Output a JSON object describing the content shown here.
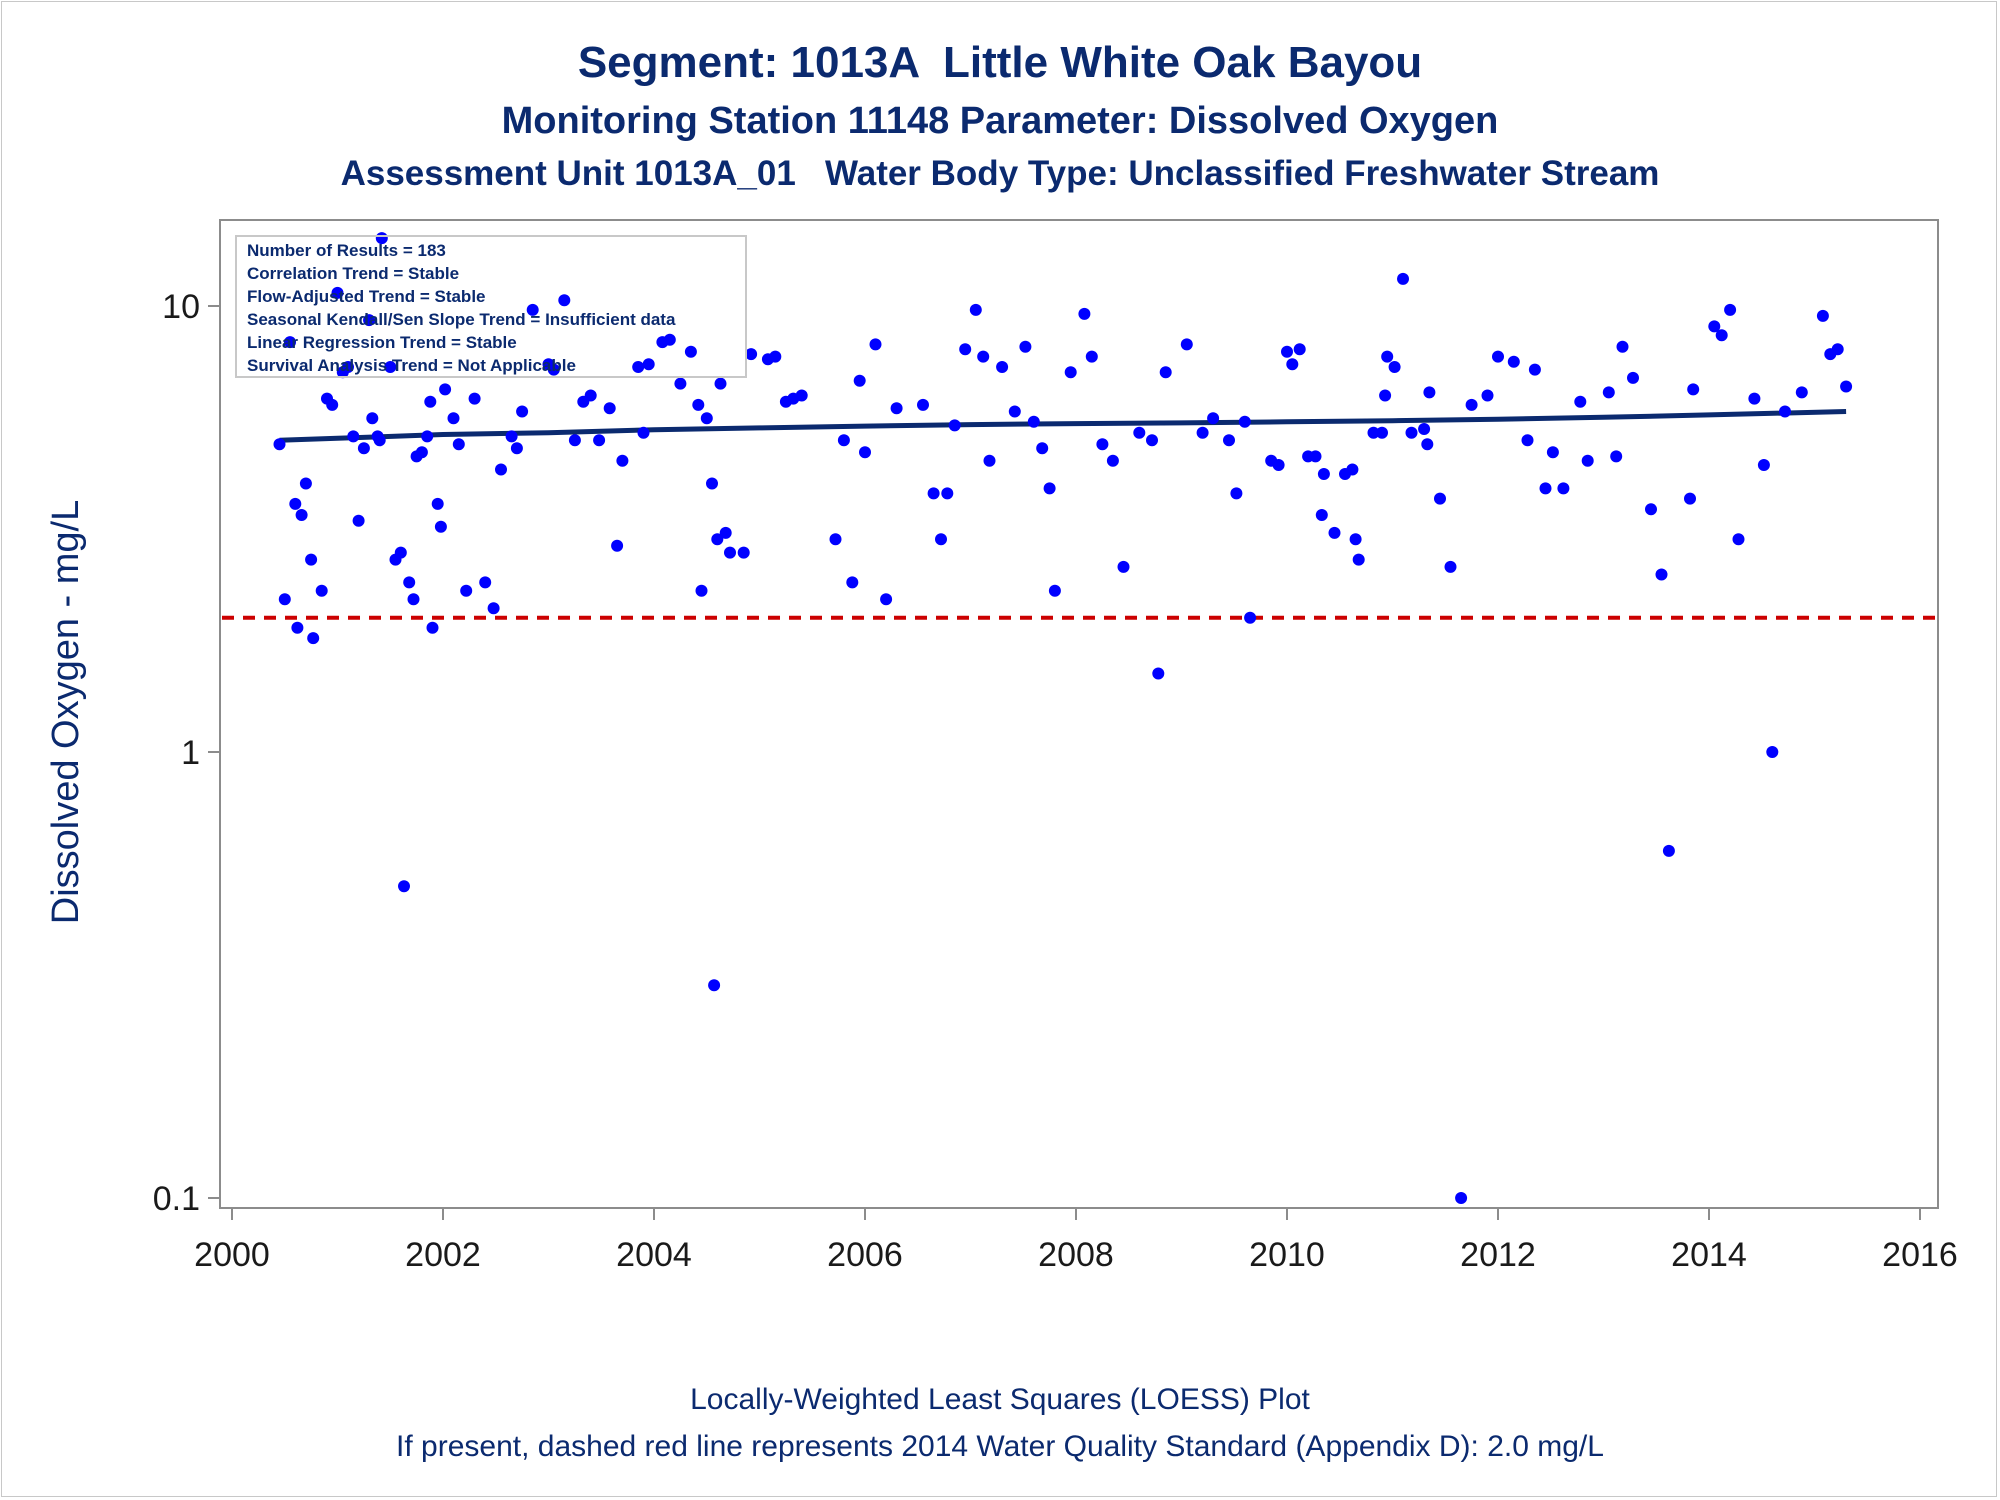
{
  "title_lines": {
    "line1": "Segment: 1013A  Little White Oak Bayou",
    "line2": "Monitoring Station 11148 Parameter: Dissolved Oxygen",
    "line3": "Assessment Unit 1013A_01   Water Body Type: Unclassified Freshwater Stream"
  },
  "footnotes": {
    "line1": "Locally-Weighted Least Squares (LOESS) Plot",
    "line2": "If present, dashed red line represents 2014 Water Quality Standard (Appendix D): 2.0 mg/L"
  },
  "stats_box": [
    "Number of Results = 183",
    "Correlation Trend = Stable",
    "Flow-Adjusted Trend = Stable",
    "Seasonal Kendall/Sen Slope Trend = Insufficient data",
    "Linear Regression Trend = Stable",
    "Survival Analysis Trend = Not Applicable"
  ],
  "colors": {
    "text": "#0b2a6f",
    "points": "#0000ff",
    "loess_line": "#0b2a6f",
    "standard_line": "#cc0000",
    "axis": "#8c8c8c"
  },
  "chart_data": {
    "type": "scatter",
    "ylabel": "Dissolved Oxygen - mg/L",
    "xlabel": "",
    "x_ticks": [
      "2000",
      "2002",
      "2004",
      "2006",
      "2008",
      "2010",
      "2012",
      "2014",
      "2016"
    ],
    "y_ticks": [
      "0.1",
      "1",
      "10"
    ],
    "xlim": [
      2000,
      2016
    ],
    "ylim": [
      0.1,
      14
    ],
    "y_scale": "log",
    "grid": false,
    "legend": "none",
    "standard_line": {
      "value": 2.0,
      "style": "dashed",
      "color": "#cc0000"
    },
    "loess_line": [
      [
        2000.45,
        5.0
      ],
      [
        2001.0,
        5.05
      ],
      [
        2002.0,
        5.15
      ],
      [
        2003.0,
        5.2
      ],
      [
        2004.0,
        5.28
      ],
      [
        2005.0,
        5.33
      ],
      [
        2006.0,
        5.38
      ],
      [
        2007.0,
        5.42
      ],
      [
        2008.0,
        5.45
      ],
      [
        2009.0,
        5.47
      ],
      [
        2010.0,
        5.5
      ],
      [
        2011.0,
        5.53
      ],
      [
        2012.0,
        5.57
      ],
      [
        2013.0,
        5.63
      ],
      [
        2014.0,
        5.7
      ],
      [
        2015.3,
        5.8
      ]
    ],
    "points": [
      [
        2000.45,
        4.9
      ],
      [
        2000.5,
        2.2
      ],
      [
        2000.55,
        8.3
      ],
      [
        2000.6,
        3.6
      ],
      [
        2000.62,
        1.9
      ],
      [
        2000.66,
        3.4
      ],
      [
        2000.7,
        4.0
      ],
      [
        2000.75,
        2.7
      ],
      [
        2000.77,
        1.8
      ],
      [
        2000.85,
        2.3
      ],
      [
        2000.9,
        6.2
      ],
      [
        2000.95,
        6.0
      ],
      [
        2001.0,
        10.7
      ],
      [
        2001.05,
        7.1
      ],
      [
        2001.1,
        7.3
      ],
      [
        2001.15,
        5.1
      ],
      [
        2001.2,
        3.3
      ],
      [
        2001.25,
        4.8
      ],
      [
        2001.3,
        9.3
      ],
      [
        2001.33,
        5.6
      ],
      [
        2001.38,
        5.1
      ],
      [
        2001.4,
        5.0
      ],
      [
        2001.42,
        14.2
      ],
      [
        2001.5,
        7.3
      ],
      [
        2001.55,
        2.7
      ],
      [
        2001.6,
        2.8
      ],
      [
        2001.63,
        0.5
      ],
      [
        2001.68,
        2.4
      ],
      [
        2001.72,
        2.2
      ],
      [
        2001.75,
        4.6
      ],
      [
        2001.8,
        4.7
      ],
      [
        2001.85,
        5.1
      ],
      [
        2001.88,
        6.1
      ],
      [
        2001.9,
        1.9
      ],
      [
        2001.95,
        3.6
      ],
      [
        2001.98,
        3.2
      ],
      [
        2002.02,
        6.5
      ],
      [
        2002.1,
        5.6
      ],
      [
        2002.15,
        4.9
      ],
      [
        2002.22,
        2.3
      ],
      [
        2002.3,
        6.2
      ],
      [
        2002.4,
        2.4
      ],
      [
        2002.48,
        2.1
      ],
      [
        2002.55,
        4.3
      ],
      [
        2002.65,
        5.1
      ],
      [
        2002.7,
        4.8
      ],
      [
        2002.75,
        5.8
      ],
      [
        2002.85,
        9.8
      ],
      [
        2003.0,
        7.4
      ],
      [
        2003.05,
        7.2
      ],
      [
        2003.15,
        10.3
      ],
      [
        2003.25,
        5.0
      ],
      [
        2003.33,
        6.1
      ],
      [
        2003.4,
        6.3
      ],
      [
        2003.48,
        5.0
      ],
      [
        2003.58,
        5.9
      ],
      [
        2003.65,
        2.9
      ],
      [
        2003.7,
        4.5
      ],
      [
        2003.85,
        7.3
      ],
      [
        2003.9,
        5.2
      ],
      [
        2003.95,
        7.4
      ],
      [
        2004.08,
        8.3
      ],
      [
        2004.15,
        8.4
      ],
      [
        2004.25,
        6.7
      ],
      [
        2004.35,
        7.9
      ],
      [
        2004.42,
        6.0
      ],
      [
        2004.45,
        2.3
      ],
      [
        2004.5,
        5.6
      ],
      [
        2004.55,
        4.0
      ],
      [
        2004.57,
        0.3
      ],
      [
        2004.6,
        3.0
      ],
      [
        2004.63,
        6.7
      ],
      [
        2004.68,
        3.1
      ],
      [
        2004.72,
        2.8
      ],
      [
        2004.85,
        2.8
      ],
      [
        2004.92,
        7.8
      ],
      [
        2005.08,
        7.6
      ],
      [
        2005.15,
        7.7
      ],
      [
        2005.25,
        6.1
      ],
      [
        2005.32,
        6.2
      ],
      [
        2005.4,
        6.3
      ],
      [
        2005.72,
        3.0
      ],
      [
        2005.8,
        5.0
      ],
      [
        2005.88,
        2.4
      ],
      [
        2005.95,
        6.8
      ],
      [
        2006.0,
        4.7
      ],
      [
        2006.1,
        8.2
      ],
      [
        2006.2,
        2.2
      ],
      [
        2006.3,
        5.9
      ],
      [
        2006.55,
        6.0
      ],
      [
        2006.65,
        3.8
      ],
      [
        2006.72,
        3.0
      ],
      [
        2006.78,
        3.8
      ],
      [
        2006.85,
        5.4
      ],
      [
        2006.95,
        8.0
      ],
      [
        2007.05,
        9.8
      ],
      [
        2007.12,
        7.7
      ],
      [
        2007.18,
        4.5
      ],
      [
        2007.3,
        7.3
      ],
      [
        2007.42,
        5.8
      ],
      [
        2007.52,
        8.1
      ],
      [
        2007.6,
        5.5
      ],
      [
        2007.68,
        4.8
      ],
      [
        2007.75,
        3.9
      ],
      [
        2007.8,
        2.3
      ],
      [
        2007.95,
        7.1
      ],
      [
        2008.08,
        9.6
      ],
      [
        2008.15,
        7.7
      ],
      [
        2008.25,
        4.9
      ],
      [
        2008.35,
        4.5
      ],
      [
        2008.45,
        2.6
      ],
      [
        2008.6,
        5.2
      ],
      [
        2008.72,
        5.0
      ],
      [
        2008.78,
        1.5
      ],
      [
        2008.85,
        7.1
      ],
      [
        2009.05,
        8.2
      ],
      [
        2009.2,
        5.2
      ],
      [
        2009.3,
        5.6
      ],
      [
        2009.45,
        5.0
      ],
      [
        2009.52,
        3.8
      ],
      [
        2009.6,
        5.5
      ],
      [
        2009.65,
        2.0
      ],
      [
        2009.85,
        4.5
      ],
      [
        2009.92,
        4.4
      ],
      [
        2010.0,
        7.9
      ],
      [
        2010.05,
        7.4
      ],
      [
        2010.12,
        8.0
      ],
      [
        2010.2,
        4.6
      ],
      [
        2010.27,
        4.6
      ],
      [
        2010.33,
        3.4
      ],
      [
        2010.35,
        4.2
      ],
      [
        2010.45,
        3.1
      ],
      [
        2010.55,
        4.2
      ],
      [
        2010.62,
        4.3
      ],
      [
        2010.65,
        3.0
      ],
      [
        2010.68,
        2.7
      ],
      [
        2010.82,
        5.2
      ],
      [
        2010.9,
        5.2
      ],
      [
        2010.93,
        6.3
      ],
      [
        2010.95,
        7.7
      ],
      [
        2011.02,
        7.3
      ],
      [
        2011.1,
        11.5
      ],
      [
        2011.18,
        5.2
      ],
      [
        2011.3,
        5.3
      ],
      [
        2011.33,
        4.9
      ],
      [
        2011.35,
        6.4
      ],
      [
        2011.45,
        3.7
      ],
      [
        2011.55,
        2.6
      ],
      [
        2011.65,
        0.1
      ],
      [
        2011.75,
        6.0
      ],
      [
        2011.9,
        6.3
      ],
      [
        2012.0,
        7.7
      ],
      [
        2012.15,
        7.5
      ],
      [
        2012.28,
        5.0
      ],
      [
        2012.35,
        7.2
      ],
      [
        2012.45,
        3.9
      ],
      [
        2012.52,
        4.7
      ],
      [
        2012.62,
        3.9
      ],
      [
        2012.78,
        6.1
      ],
      [
        2012.85,
        4.5
      ],
      [
        2013.05,
        6.4
      ],
      [
        2013.12,
        4.6
      ],
      [
        2013.18,
        8.1
      ],
      [
        2013.28,
        6.9
      ],
      [
        2013.45,
        3.5
      ],
      [
        2013.55,
        2.5
      ],
      [
        2013.62,
        0.6
      ],
      [
        2013.82,
        3.7
      ],
      [
        2013.85,
        6.5
      ],
      [
        2014.05,
        9.0
      ],
      [
        2014.12,
        8.6
      ],
      [
        2014.2,
        9.8
      ],
      [
        2014.28,
        3.0
      ],
      [
        2014.43,
        6.2
      ],
      [
        2014.52,
        4.4
      ],
      [
        2014.6,
        1.0
      ],
      [
        2014.72,
        5.8
      ],
      [
        2014.88,
        6.4
      ],
      [
        2015.08,
        9.5
      ],
      [
        2015.15,
        7.8
      ],
      [
        2015.22,
        8.0
      ],
      [
        2015.3,
        6.6
      ]
    ]
  }
}
